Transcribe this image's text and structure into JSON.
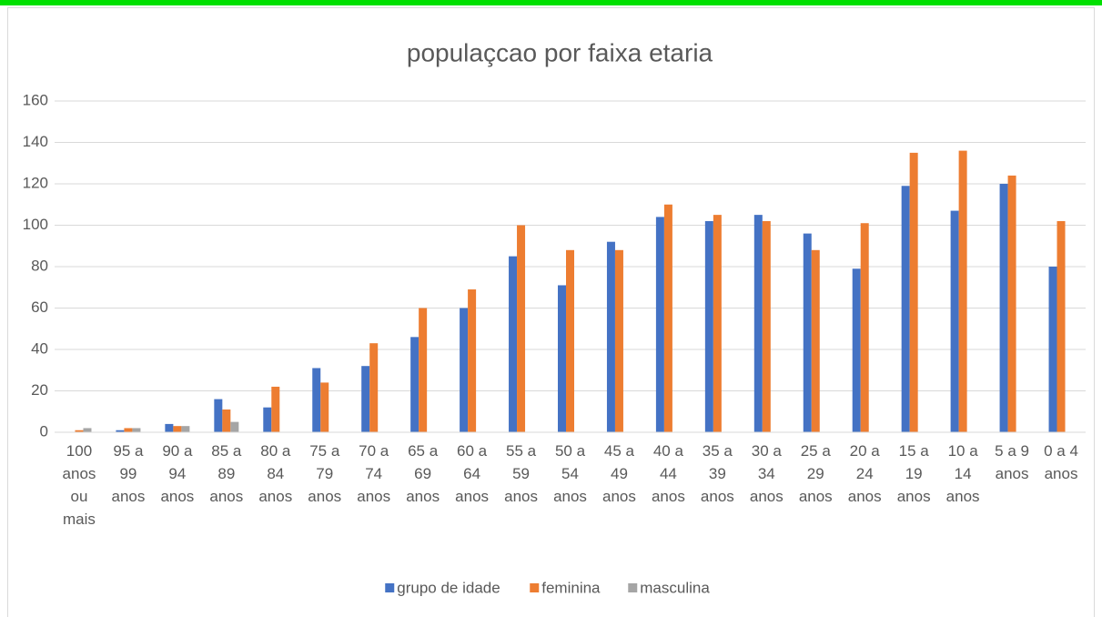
{
  "chart_data": {
    "type": "bar",
    "title": "populaçcao por faixa etaria",
    "categories": [
      "100 anos ou mais",
      "95 a 99 anos",
      "90 a 94 anos",
      "85 a 89 anos",
      "80 a 84 anos",
      "75 a 79 anos",
      "70 a 74 anos",
      "65 a 69 anos",
      "60 a 64 anos",
      "55 a 59 anos",
      "50 a 54 anos",
      "45 a 49 anos",
      "40 a 44 anos",
      "35 a 39 anos",
      "30 a 34 anos",
      "25 a 29 anos",
      "20 a 24 anos",
      "15 a 19 anos",
      "10 a 14 anos",
      "5 a 9 anos",
      "0 a 4 anos"
    ],
    "series": [
      {
        "name": "grupo de idade",
        "color": "#4472c4",
        "values": [
          0,
          1,
          4,
          16,
          12,
          31,
          32,
          46,
          60,
          85,
          71,
          92,
          104,
          102,
          105,
          96,
          79,
          119,
          107,
          120,
          80
        ]
      },
      {
        "name": "feminina",
        "color": "#ed7d31",
        "values": [
          1,
          2,
          3,
          11,
          22,
          24,
          43,
          60,
          69,
          100,
          88,
          88,
          110,
          105,
          102,
          88,
          101,
          135,
          136,
          124,
          102
        ]
      },
      {
        "name": "masculina",
        "color": "#a5a5a5",
        "values": [
          2,
          2,
          3,
          5,
          null,
          null,
          null,
          null,
          null,
          null,
          null,
          null,
          null,
          null,
          null,
          null,
          null,
          null,
          null,
          null,
          null
        ]
      }
    ],
    "ylim": [
      0,
      160
    ],
    "yticks": [
      0,
      20,
      40,
      60,
      80,
      100,
      120,
      140,
      160
    ],
    "grid": true,
    "legend": "bottom"
  }
}
